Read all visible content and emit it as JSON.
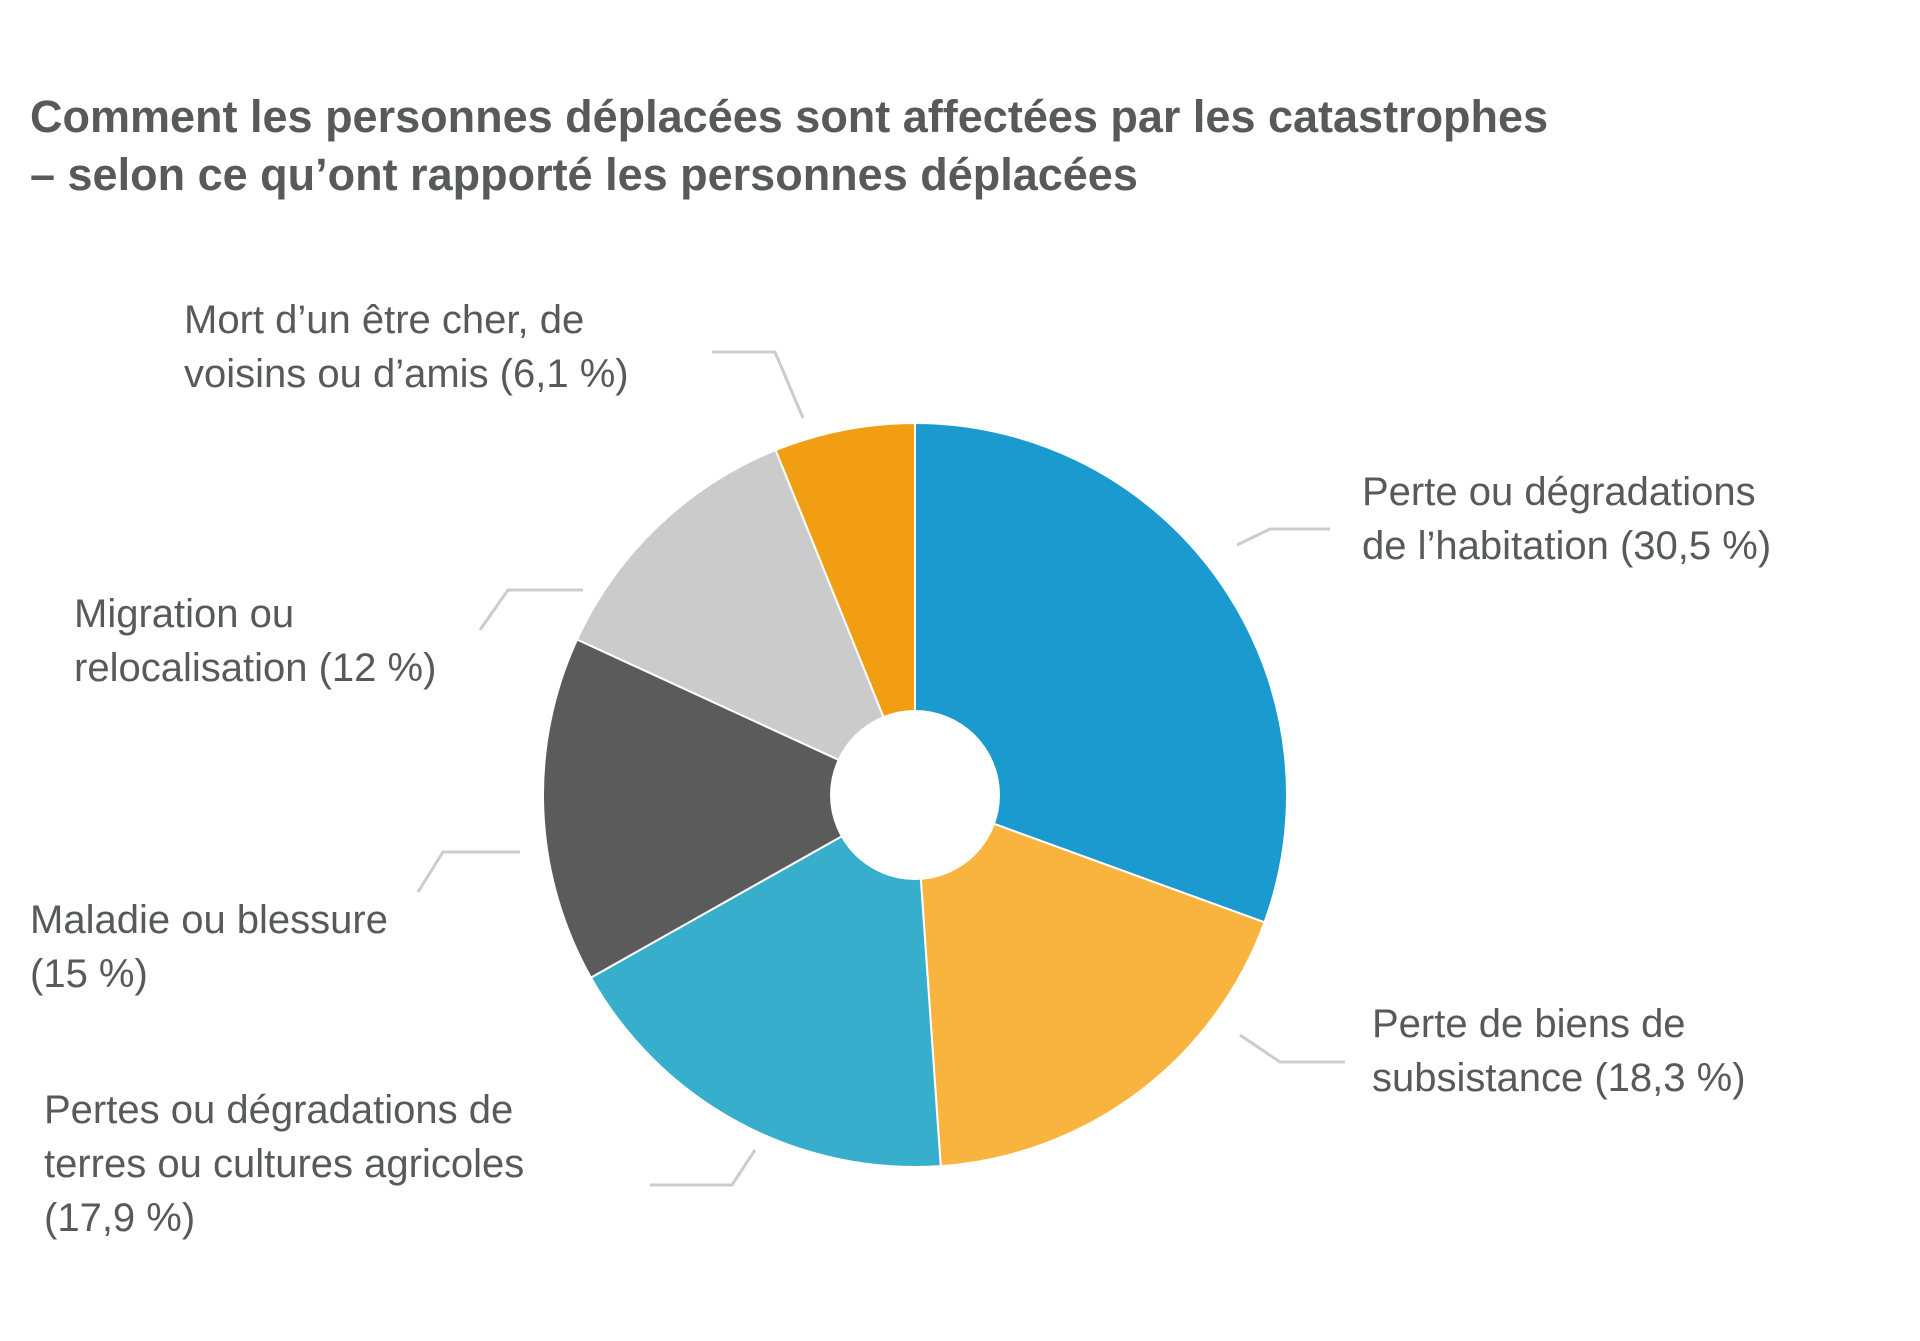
{
  "chart_data": {
    "type": "pie",
    "title_lines": [
      "Comment les personnes déplacées sont affectées par les catastrophes",
      "– selon ce qu’ont rapporté les personnes déplacées"
    ],
    "categories": [
      "Perte ou dégradations de l’habitation",
      "Perte de biens de subsistance",
      "Pertes ou dégradations de terres ou cultures agricoles",
      "Maladie ou blessure",
      "Migration ou relocalisation",
      "Mort d’un être cher, de voisins ou d’amis"
    ],
    "values": [
      30.5,
      18.3,
      17.9,
      15,
      12,
      6.1
    ],
    "labels": [
      [
        "Perte ou dégradations",
        "de l’habitation (30,5 %)"
      ],
      [
        "Perte de biens de",
        "subsistance (18,3 %)"
      ],
      [
        "Pertes ou dégradations de",
        "terres ou cultures agricoles",
        "(17,9 %)"
      ],
      [
        "Maladie ou blessure",
        "(15 %)"
      ],
      [
        "Migration ou",
        "relocalisation (12 %)"
      ],
      [
        "Mort d’un être cher, de",
        "voisins ou d’amis (6,1 %)"
      ]
    ],
    "colors": [
      "#1a9ace",
      "#f9b43f",
      "#37aecb",
      "#5c5b5c",
      "#cbcbcb",
      "#f29e12"
    ],
    "start_angle_deg": 0,
    "direction": "clockwise",
    "donut": true,
    "legend": "none"
  }
}
